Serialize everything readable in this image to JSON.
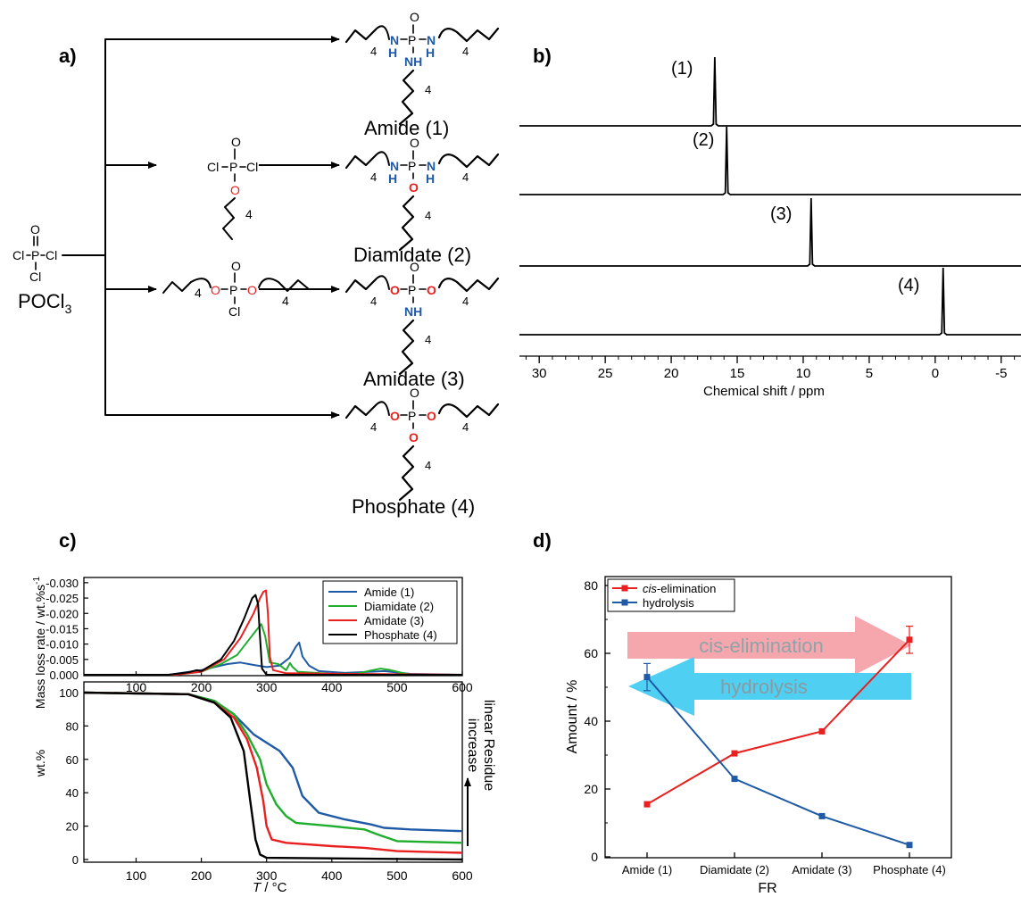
{
  "panels": {
    "a": "a)",
    "b": "b)",
    "c": "c)",
    "d": "d)"
  },
  "scheme": {
    "reagent_label": "POCl",
    "reagent_sub": "3",
    "compounds": [
      "Amide (1)",
      "Diamidate (2)",
      "Amidate (3)",
      "Phosphate (4)"
    ],
    "atoms": {
      "O": "O",
      "P": "P",
      "Cl": "Cl",
      "N": "N",
      "H": "H",
      "NH": "NH",
      "n": "4"
    }
  },
  "nmr": {
    "xlabel": "Chemical shift / ppm",
    "ticks": [
      30,
      25,
      20,
      15,
      10,
      5,
      0,
      -5
    ],
    "xlim": [
      31.5,
      -6.5
    ],
    "peaks": [
      {
        "label": "(1)",
        "shift": 16.7
      },
      {
        "label": "(2)",
        "shift": 15.8
      },
      {
        "label": "(3)",
        "shift": 9.4
      },
      {
        "label": "(4)",
        "shift": -0.6
      }
    ]
  },
  "tga": {
    "dtg_ylabel": "Mass loss rate / wt.%s",
    "dtg_ylabel_sup": "-1",
    "dtg_ticks": [
      "-0.030",
      "-0.025",
      "-0.020",
      "-0.015",
      "-0.010",
      "-0.005",
      "0.000"
    ],
    "wt_ylabel": "wt.%",
    "wt_ticks": [
      100,
      80,
      60,
      40,
      20,
      0
    ],
    "x_ticks": [
      100,
      200,
      300,
      400,
      500,
      600
    ],
    "xlabel_italic": "T",
    "xlabel_rest": " / °C",
    "xlim": [
      20,
      600
    ],
    "side_label_1": "linear Residue",
    "side_label_2": "increase",
    "series": [
      {
        "name": "Amide (1)",
        "color": "#1f5aa6",
        "dtg": [
          [
            20,
            0
          ],
          [
            150,
            0
          ],
          [
            200,
            0.0015
          ],
          [
            240,
            0.0035
          ],
          [
            260,
            0.004
          ],
          [
            280,
            0.0032
          ],
          [
            300,
            0.0025
          ],
          [
            320,
            0.003
          ],
          [
            335,
            0.0055
          ],
          [
            345,
            0.0092
          ],
          [
            350,
            0.0105
          ],
          [
            355,
            0.006
          ],
          [
            365,
            0.003
          ],
          [
            380,
            0.0012
          ],
          [
            420,
            0.0006
          ],
          [
            460,
            0.001
          ],
          [
            480,
            0.0012
          ],
          [
            520,
            0.0003
          ],
          [
            600,
            0
          ]
        ],
        "wt": [
          [
            20,
            100
          ],
          [
            180,
            99
          ],
          [
            220,
            95
          ],
          [
            250,
            87
          ],
          [
            280,
            75
          ],
          [
            300,
            70
          ],
          [
            320,
            65
          ],
          [
            340,
            55
          ],
          [
            355,
            38
          ],
          [
            380,
            28
          ],
          [
            420,
            24
          ],
          [
            460,
            21
          ],
          [
            480,
            19
          ],
          [
            520,
            18
          ],
          [
            600,
            17
          ]
        ]
      },
      {
        "name": "Diamidate (2)",
        "color": "#1fae2c",
        "dtg": [
          [
            20,
            0
          ],
          [
            160,
            0
          ],
          [
            200,
            0.001
          ],
          [
            230,
            0.0035
          ],
          [
            255,
            0.0065
          ],
          [
            275,
            0.012
          ],
          [
            288,
            0.0155
          ],
          [
            292,
            0.0165
          ],
          [
            298,
            0.0125
          ],
          [
            305,
            0.004
          ],
          [
            318,
            0.0035
          ],
          [
            330,
            0.0015
          ],
          [
            336,
            0.0038
          ],
          [
            340,
            0.0025
          ],
          [
            348,
            0.001
          ],
          [
            400,
            0.0003
          ],
          [
            440,
            0.0004
          ],
          [
            460,
            0.0014
          ],
          [
            475,
            0.002
          ],
          [
            490,
            0.0015
          ],
          [
            520,
            0
          ],
          [
            600,
            0
          ]
        ],
        "wt": [
          [
            20,
            100
          ],
          [
            180,
            99
          ],
          [
            220,
            95
          ],
          [
            250,
            87
          ],
          [
            270,
            75
          ],
          [
            290,
            60
          ],
          [
            300,
            45
          ],
          [
            315,
            33
          ],
          [
            330,
            26
          ],
          [
            345,
            22
          ],
          [
            400,
            20
          ],
          [
            450,
            18
          ],
          [
            470,
            15
          ],
          [
            500,
            11
          ],
          [
            600,
            10
          ]
        ]
      },
      {
        "name": "Amidate (3)",
        "color": "#e8201f",
        "dtg": [
          [
            20,
            0
          ],
          [
            160,
            0
          ],
          [
            200,
            0.001
          ],
          [
            235,
            0.005
          ],
          [
            260,
            0.012
          ],
          [
            280,
            0.02
          ],
          [
            290,
            0.025
          ],
          [
            295,
            0.027
          ],
          [
            299,
            0.0275
          ],
          [
            302,
            0.02
          ],
          [
            305,
            0.006
          ],
          [
            310,
            0.0015
          ],
          [
            330,
            0.0005
          ],
          [
            600,
            0
          ]
        ],
        "wt": [
          [
            20,
            100
          ],
          [
            180,
            99
          ],
          [
            220,
            94
          ],
          [
            250,
            85
          ],
          [
            270,
            72
          ],
          [
            285,
            55
          ],
          [
            295,
            35
          ],
          [
            300,
            20
          ],
          [
            308,
            12
          ],
          [
            330,
            10
          ],
          [
            400,
            8
          ],
          [
            450,
            7
          ],
          [
            500,
            5
          ],
          [
            600,
            4
          ]
        ]
      },
      {
        "name": "Phosphate (4)",
        "color": "#000000",
        "dtg": [
          [
            20,
            0
          ],
          [
            150,
            0
          ],
          [
            180,
            0.0008
          ],
          [
            193,
            0.0015
          ],
          [
            200,
            0.0012
          ],
          [
            230,
            0.005
          ],
          [
            250,
            0.011
          ],
          [
            265,
            0.018
          ],
          [
            278,
            0.025
          ],
          [
            283,
            0.026
          ],
          [
            287,
            0.023
          ],
          [
            290,
            0.012
          ],
          [
            293,
            0.002
          ],
          [
            300,
            0
          ],
          [
            600,
            0
          ]
        ],
        "wt": [
          [
            20,
            100
          ],
          [
            180,
            99
          ],
          [
            220,
            94
          ],
          [
            245,
            85
          ],
          [
            265,
            65
          ],
          [
            275,
            35
          ],
          [
            283,
            12
          ],
          [
            290,
            3
          ],
          [
            300,
            1
          ],
          [
            600,
            0
          ]
        ]
      }
    ]
  },
  "chart_data": {
    "type": "line",
    "categories": [
      "Amide (1)",
      "Diamidate (2)",
      "Amidate (3)",
      "Phosphate (4)"
    ],
    "xlabel": "FR",
    "ylabel": "Amount / %",
    "ylim": [
      0,
      80
    ],
    "yticks": [
      0,
      20,
      40,
      60,
      80
    ],
    "legend_placement": "top-left",
    "series": [
      {
        "name_italic": "cis",
        "name_rest": "-elimination",
        "color": "#e8201f",
        "values": [
          15.5,
          30.5,
          37,
          64
        ],
        "errors": [
          0,
          0,
          0,
          4
        ]
      },
      {
        "name": "hydrolysis",
        "color": "#1f5aa6",
        "values": [
          53,
          23,
          12,
          3.5
        ],
        "errors": [
          4,
          0,
          0,
          0
        ]
      }
    ],
    "arrows": [
      {
        "label": "cis-elimination",
        "color": "#f6a6ad",
        "text_color": "#8fa3a8",
        "direction": "right"
      },
      {
        "label": "hydrolysis",
        "color": "#4fd0f2",
        "text_color": "#8a9aa0",
        "direction": "left"
      }
    ]
  }
}
